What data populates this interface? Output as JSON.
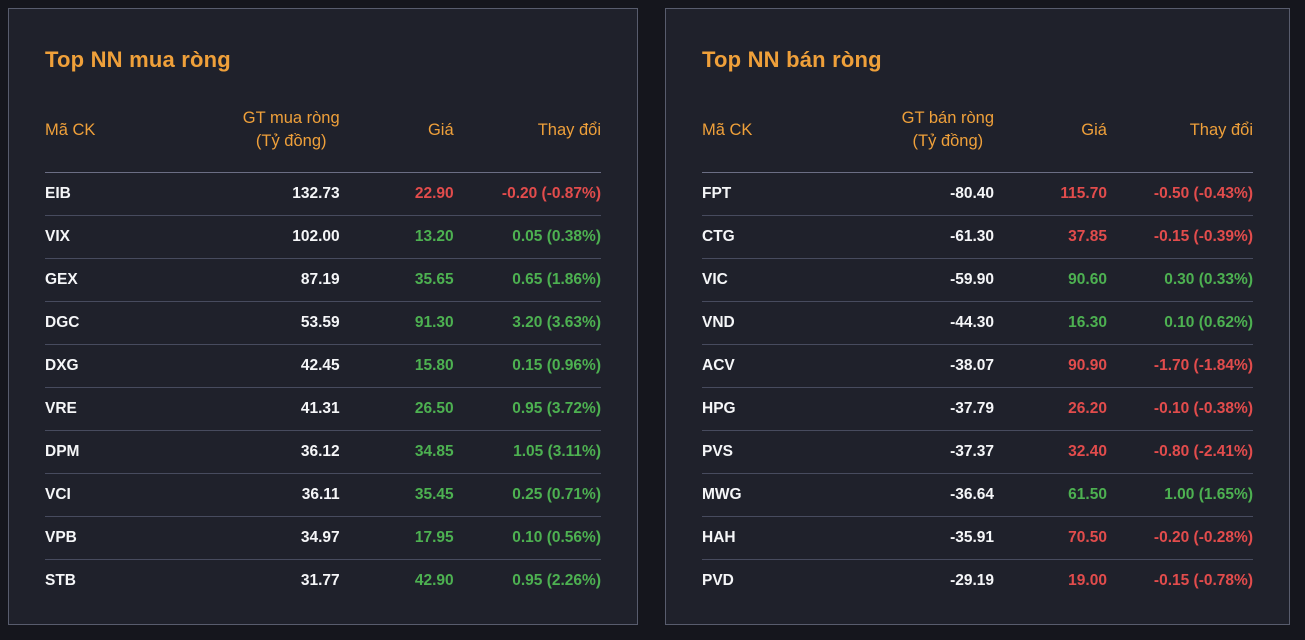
{
  "colors": {
    "page_bg": "#15161d",
    "panel_bg": "#1f212b",
    "panel_border": "#585c6d",
    "accent": "#efa03a",
    "up": "#4db151",
    "down": "#e24c4c",
    "text_primary": "#f5f6f8",
    "row_separator": "#474b5e",
    "header_separator": "#6b6e84"
  },
  "panels": [
    {
      "title": "Top NN mua ròng",
      "columns": {
        "symbol": "Mã CK",
        "net_value": "GT mua ròng",
        "net_value_unit": "(Tỷ đồng)",
        "price": "Giá",
        "change": "Thay đổi"
      },
      "rows": [
        {
          "symbol": "EIB",
          "net_value": "132.73",
          "price": "22.90",
          "change": "-0.20 (-0.87%)",
          "direction": "down"
        },
        {
          "symbol": "VIX",
          "net_value": "102.00",
          "price": "13.20",
          "change": "0.05 (0.38%)",
          "direction": "up"
        },
        {
          "symbol": "GEX",
          "net_value": "87.19",
          "price": "35.65",
          "change": "0.65 (1.86%)",
          "direction": "up"
        },
        {
          "symbol": "DGC",
          "net_value": "53.59",
          "price": "91.30",
          "change": "3.20 (3.63%)",
          "direction": "up"
        },
        {
          "symbol": "DXG",
          "net_value": "42.45",
          "price": "15.80",
          "change": "0.15 (0.96%)",
          "direction": "up"
        },
        {
          "symbol": "VRE",
          "net_value": "41.31",
          "price": "26.50",
          "change": "0.95 (3.72%)",
          "direction": "up"
        },
        {
          "symbol": "DPM",
          "net_value": "36.12",
          "price": "34.85",
          "change": "1.05 (3.11%)",
          "direction": "up"
        },
        {
          "symbol": "VCI",
          "net_value": "36.11",
          "price": "35.45",
          "change": "0.25 (0.71%)",
          "direction": "up"
        },
        {
          "symbol": "VPB",
          "net_value": "34.97",
          "price": "17.95",
          "change": "0.10 (0.56%)",
          "direction": "up"
        },
        {
          "symbol": "STB",
          "net_value": "31.77",
          "price": "42.90",
          "change": "0.95 (2.26%)",
          "direction": "up"
        }
      ]
    },
    {
      "title": "Top NN bán ròng",
      "columns": {
        "symbol": "Mã CK",
        "net_value": "GT bán ròng",
        "net_value_unit": "(Tỷ đồng)",
        "price": "Giá",
        "change": "Thay đổi"
      },
      "rows": [
        {
          "symbol": "FPT",
          "net_value": "-80.40",
          "price": "115.70",
          "change": "-0.50 (-0.43%)",
          "direction": "down"
        },
        {
          "symbol": "CTG",
          "net_value": "-61.30",
          "price": "37.85",
          "change": "-0.15 (-0.39%)",
          "direction": "down"
        },
        {
          "symbol": "VIC",
          "net_value": "-59.90",
          "price": "90.60",
          "change": "0.30 (0.33%)",
          "direction": "up"
        },
        {
          "symbol": "VND",
          "net_value": "-44.30",
          "price": "16.30",
          "change": "0.10 (0.62%)",
          "direction": "up"
        },
        {
          "symbol": "ACV",
          "net_value": "-38.07",
          "price": "90.90",
          "change": "-1.70 (-1.84%)",
          "direction": "down"
        },
        {
          "symbol": "HPG",
          "net_value": "-37.79",
          "price": "26.20",
          "change": "-0.10 (-0.38%)",
          "direction": "down"
        },
        {
          "symbol": "PVS",
          "net_value": "-37.37",
          "price": "32.40",
          "change": "-0.80 (-2.41%)",
          "direction": "down"
        },
        {
          "symbol": "MWG",
          "net_value": "-36.64",
          "price": "61.50",
          "change": "1.00 (1.65%)",
          "direction": "up"
        },
        {
          "symbol": "HAH",
          "net_value": "-35.91",
          "price": "70.50",
          "change": "-0.20 (-0.28%)",
          "direction": "down"
        },
        {
          "symbol": "PVD",
          "net_value": "-29.19",
          "price": "19.00",
          "change": "-0.15 (-0.78%)",
          "direction": "down"
        }
      ]
    }
  ]
}
